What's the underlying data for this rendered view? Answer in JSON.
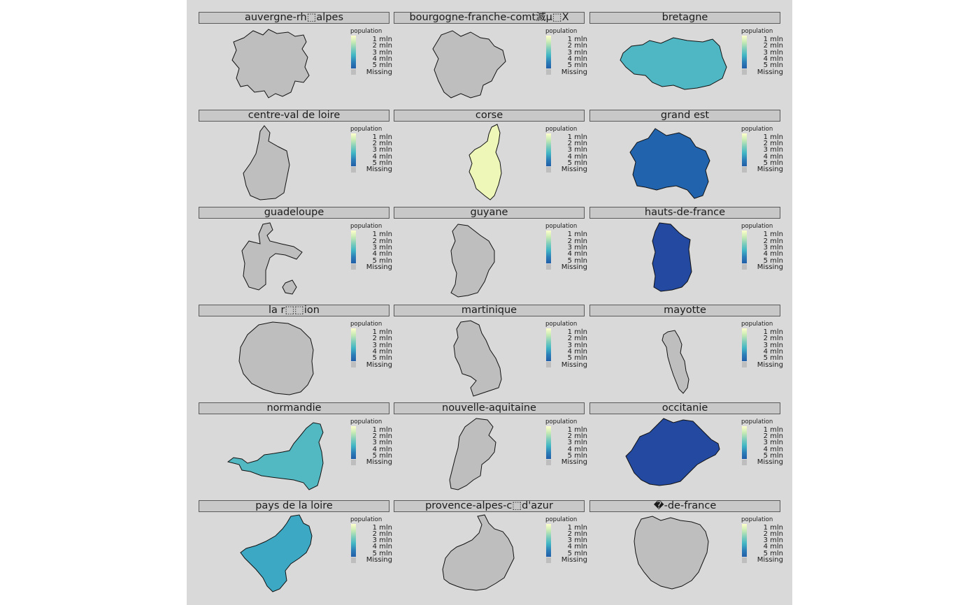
{
  "legend": {
    "title": "population",
    "labels": [
      "1 mln",
      "2 mln",
      "3 mln",
      "4 mln",
      "5 mln"
    ],
    "missing": "Missing"
  },
  "colors": {
    "background": "#d9d9d9",
    "strip": "#c8c8c8",
    "missing": "#bebebe",
    "scale": [
      "#ffffcc",
      "#c7e9b4",
      "#7fcdbb",
      "#41b6c4",
      "#2c7fb8",
      "#225ea8"
    ]
  },
  "panels": [
    {
      "title": "auvergne-rh⬚alpes",
      "fill": "#bebebe"
    },
    {
      "title": "bourgogne-franche-comt滅µ⬚X",
      "fill": "#bebebe"
    },
    {
      "title": "bretagne",
      "fill": "#4fb7c3"
    },
    {
      "title": "centre-val de loire",
      "fill": "#bebebe"
    },
    {
      "title": "corse",
      "fill": "#eef7b7"
    },
    {
      "title": "grand est",
      "fill": "#2163ad"
    },
    {
      "title": "guadeloupe",
      "fill": "#bebebe"
    },
    {
      "title": "guyane",
      "fill": "#bebebe"
    },
    {
      "title": "hauts-de-france",
      "fill": "#2349a0"
    },
    {
      "title": "la r⬚⬚ion",
      "fill": "#bebebe"
    },
    {
      "title": "martinique",
      "fill": "#bebebe"
    },
    {
      "title": "mayotte",
      "fill": "#bebebe"
    },
    {
      "title": "normandie",
      "fill": "#52b9c2"
    },
    {
      "title": "nouvelle-aquitaine",
      "fill": "#bebebe"
    },
    {
      "title": "occitanie",
      "fill": "#2349a0"
    },
    {
      "title": "pays de la loire",
      "fill": "#3da8c4"
    },
    {
      "title": "provence-alpes-c⬚d'azur",
      "fill": "#bebebe"
    },
    {
      "title": "�-de-france",
      "fill": "#bebebe"
    }
  ]
}
